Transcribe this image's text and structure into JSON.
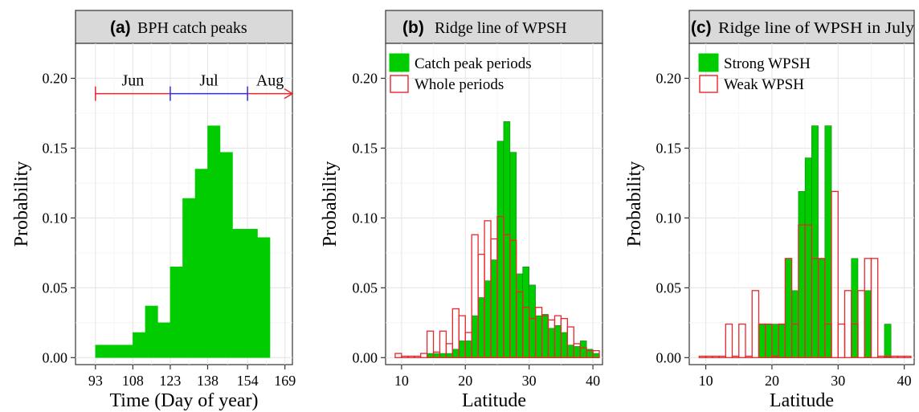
{
  "chart_data": [
    {
      "type": "bar",
      "panel_label": "(a)",
      "title": "BPH catch peaks",
      "xlabel": "Time (Day of year)",
      "ylabel": "Probability",
      "xlim": [
        85,
        172
      ],
      "ylim": [
        -0.005,
        0.225
      ],
      "x_ticks": [
        93,
        108,
        123,
        138,
        154,
        169
      ],
      "x_tick_labels": [
        "93",
        "108",
        "123",
        "138",
        "154",
        "169"
      ],
      "y_ticks": [
        0,
        0.05,
        0.1,
        0.15,
        0.2
      ],
      "y_tick_labels": [
        "0.00",
        "0.05",
        "0.10",
        "0.15",
        "0.20"
      ],
      "grid": true,
      "bin_width": 5,
      "series": [
        {
          "color": "#00cc00",
          "bins": [
            {
              "x": 93,
              "y": 0.009
            },
            {
              "x": 98,
              "y": 0.009
            },
            {
              "x": 103,
              "y": 0.009
            },
            {
              "x": 108,
              "y": 0.018
            },
            {
              "x": 113,
              "y": 0.037
            },
            {
              "x": 118,
              "y": 0.025
            },
            {
              "x": 123,
              "y": 0.065
            },
            {
              "x": 128,
              "y": 0.114
            },
            {
              "x": 133,
              "y": 0.135
            },
            {
              "x": 138,
              "y": 0.166
            },
            {
              "x": 143,
              "y": 0.147
            },
            {
              "x": 148,
              "y": 0.092
            },
            {
              "x": 153,
              "y": 0.092
            },
            {
              "x": 158,
              "y": 0.086
            }
          ]
        }
      ],
      "months": [
        {
          "label": "Jun",
          "start": 93,
          "end": 123,
          "color": "#e8262b"
        },
        {
          "label": "Jul",
          "start": 123,
          "end": 154,
          "color": "#2e2ee6"
        },
        {
          "label": "Aug",
          "start": 154,
          "end": 172,
          "color": "#e8262b"
        }
      ],
      "month_arrow_y": 0.189
    },
    {
      "type": "bar",
      "panel_label": "(b)",
      "title": "Ridge line of WPSH",
      "xlabel": "Latitude",
      "ylabel": "Probability",
      "xlim": [
        7.5,
        41.5
      ],
      "ylim": [
        -0.005,
        0.225
      ],
      "x_ticks": [
        10,
        20,
        30,
        40
      ],
      "x_tick_labels": [
        "10",
        "20",
        "30",
        "40"
      ],
      "y_ticks": [
        0,
        0.05,
        0.1,
        0.15,
        0.2
      ],
      "y_tick_labels": [
        "0.00",
        "0.05",
        "0.10",
        "0.15",
        "0.20"
      ],
      "grid": true,
      "legend_position": "top-left",
      "bin_width": 1,
      "series": [
        {
          "name": "Catch peak periods",
          "style": "filled",
          "color": "#00cc00",
          "bins": [
            {
              "x": 14,
              "y": 0.003
            },
            {
              "x": 15,
              "y": 0.003
            },
            {
              "x": 16,
              "y": 0.003
            },
            {
              "x": 17,
              "y": 0.003
            },
            {
              "x": 18,
              "y": 0.006
            },
            {
              "x": 19,
              "y": 0.012
            },
            {
              "x": 20,
              "y": 0.012
            },
            {
              "x": 21,
              "y": 0.03
            },
            {
              "x": 22,
              "y": 0.043
            },
            {
              "x": 23,
              "y": 0.055
            },
            {
              "x": 24,
              "y": 0.07
            },
            {
              "x": 25,
              "y": 0.155
            },
            {
              "x": 26,
              "y": 0.169
            },
            {
              "x": 27,
              "y": 0.147
            },
            {
              "x": 28,
              "y": 0.06
            },
            {
              "x": 29,
              "y": 0.065
            },
            {
              "x": 30,
              "y": 0.052
            },
            {
              "x": 31,
              "y": 0.03
            },
            {
              "x": 32,
              "y": 0.031
            },
            {
              "x": 33,
              "y": 0.021
            },
            {
              "x": 34,
              "y": 0.023
            },
            {
              "x": 35,
              "y": 0.018
            },
            {
              "x": 36,
              "y": 0.009
            },
            {
              "x": 37,
              "y": 0.008
            },
            {
              "x": 38,
              "y": 0.012
            },
            {
              "x": 39,
              "y": 0.006
            },
            {
              "x": 40,
              "y": 0.003
            }
          ]
        },
        {
          "name": "Whole periods",
          "style": "outline",
          "color": "#e8262b",
          "bins": [
            {
              "x": 9,
              "y": 0.003
            },
            {
              "x": 10,
              "y": 0.001
            },
            {
              "x": 11,
              "y": 0.001
            },
            {
              "x": 12,
              "y": 0.001
            },
            {
              "x": 13,
              "y": 0.003
            },
            {
              "x": 14,
              "y": 0.019
            },
            {
              "x": 15,
              "y": 0.004
            },
            {
              "x": 16,
              "y": 0.019
            },
            {
              "x": 17,
              "y": 0.01
            },
            {
              "x": 18,
              "y": 0.035
            },
            {
              "x": 19,
              "y": 0.03
            },
            {
              "x": 20,
              "y": 0.018
            },
            {
              "x": 21,
              "y": 0.088
            },
            {
              "x": 22,
              "y": 0.074
            },
            {
              "x": 23,
              "y": 0.098
            },
            {
              "x": 24,
              "y": 0.085
            },
            {
              "x": 25,
              "y": 0.101
            },
            {
              "x": 26,
              "y": 0.088
            },
            {
              "x": 27,
              "y": 0.084
            },
            {
              "x": 28,
              "y": 0.047
            },
            {
              "x": 29,
              "y": 0.036
            },
            {
              "x": 30,
              "y": 0.028
            },
            {
              "x": 31,
              "y": 0.036
            },
            {
              "x": 32,
              "y": 0.03
            },
            {
              "x": 33,
              "y": 0.027
            },
            {
              "x": 34,
              "y": 0.03
            },
            {
              "x": 35,
              "y": 0.028
            },
            {
              "x": 36,
              "y": 0.022
            },
            {
              "x": 37,
              "y": 0.01
            },
            {
              "x": 38,
              "y": 0.007
            },
            {
              "x": 39,
              "y": 0.005
            },
            {
              "x": 40,
              "y": 0.005
            }
          ]
        }
      ]
    },
    {
      "type": "bar",
      "panel_label": "(c)",
      "title": "Ridge line of WPSH in July",
      "xlabel": "Latitude",
      "ylabel": "Probability",
      "xlim": [
        7.5,
        41.5
      ],
      "ylim": [
        -0.005,
        0.225
      ],
      "x_ticks": [
        10,
        20,
        30,
        40
      ],
      "x_tick_labels": [
        "10",
        "20",
        "30",
        "40"
      ],
      "y_ticks": [
        0,
        0.05,
        0.1,
        0.15,
        0.2
      ],
      "y_tick_labels": [
        "0.00",
        "0.05",
        "0.10",
        "0.15",
        "0.20"
      ],
      "grid": true,
      "legend_position": "top-left",
      "bin_width": 1,
      "series": [
        {
          "name": "Strong WPSH",
          "style": "filled",
          "color": "#00cc00",
          "bins": [
            {
              "x": 18,
              "y": 0.024
            },
            {
              "x": 19,
              "y": 0.024
            },
            {
              "x": 20,
              "y": 0.024
            },
            {
              "x": 21,
              "y": 0.024
            },
            {
              "x": 22,
              "y": 0.071
            },
            {
              "x": 23,
              "y": 0.048
            },
            {
              "x": 24,
              "y": 0.119
            },
            {
              "x": 25,
              "y": 0.143
            },
            {
              "x": 26,
              "y": 0.166
            },
            {
              "x": 27,
              "y": 0.071
            },
            {
              "x": 28,
              "y": 0.166
            },
            {
              "x": 32,
              "y": 0.071
            },
            {
              "x": 34,
              "y": 0.048
            },
            {
              "x": 37,
              "y": 0.024
            }
          ]
        },
        {
          "name": "Weak WPSH",
          "style": "outline",
          "color": "#e8262b",
          "bins": [
            {
              "x": 9,
              "y": 0.001
            },
            {
              "x": 10,
              "y": 0.001
            },
            {
              "x": 11,
              "y": 0.001
            },
            {
              "x": 12,
              "y": 0.001
            },
            {
              "x": 13,
              "y": 0.024
            },
            {
              "x": 14,
              "y": 0.001
            },
            {
              "x": 15,
              "y": 0.024
            },
            {
              "x": 16,
              "y": 0.001
            },
            {
              "x": 17,
              "y": 0.048
            },
            {
              "x": 18,
              "y": 0.024
            },
            {
              "x": 19,
              "y": 0.024
            },
            {
              "x": 20,
              "y": 0.001
            },
            {
              "x": 21,
              "y": 0.024
            },
            {
              "x": 22,
              "y": 0.071
            },
            {
              "x": 23,
              "y": 0.024
            },
            {
              "x": 24,
              "y": 0.095
            },
            {
              "x": 25,
              "y": 0.095
            },
            {
              "x": 26,
              "y": 0.071
            },
            {
              "x": 27,
              "y": 0.071
            },
            {
              "x": 28,
              "y": 0.024
            },
            {
              "x": 29,
              "y": 0.119
            },
            {
              "x": 30,
              "y": 0.024
            },
            {
              "x": 31,
              "y": 0.048
            },
            {
              "x": 32,
              "y": 0.024
            },
            {
              "x": 33,
              "y": 0.048
            },
            {
              "x": 34,
              "y": 0.071
            },
            {
              "x": 35,
              "y": 0.071
            },
            {
              "x": 36,
              "y": 0.001
            },
            {
              "x": 37,
              "y": 0.001
            },
            {
              "x": 38,
              "y": 0.001
            },
            {
              "x": 39,
              "y": 0.001
            },
            {
              "x": 40,
              "y": 0.001
            }
          ]
        }
      ]
    }
  ]
}
